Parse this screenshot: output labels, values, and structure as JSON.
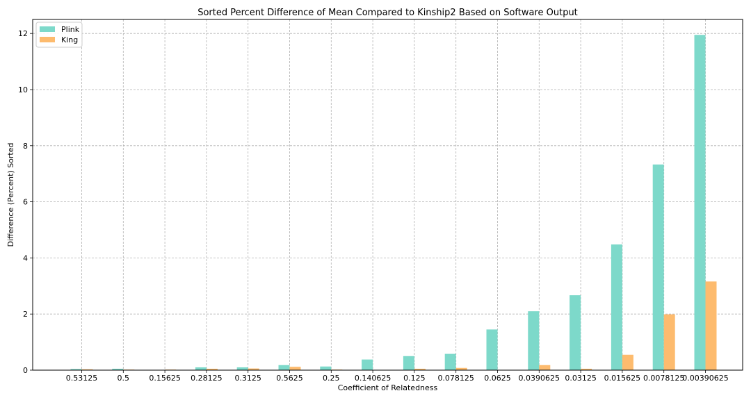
{
  "chart_data": {
    "type": "bar",
    "title": "Sorted Percent Difference of Mean Compared to Kinship2 Based on Software Output",
    "xlabel": "Coefficient of Relatedness",
    "ylabel": "Difference (Percent) Sorted",
    "categories": [
      "0.53125",
      "0.5",
      "0.15625",
      "0.28125",
      "0.3125",
      "0.5625",
      "0.25",
      "0.140625",
      "0.125",
      "0.078125",
      "0.0625",
      "0.0390625",
      "0.03125",
      "0.015625",
      "0.0078125",
      "0.00390625"
    ],
    "series": [
      {
        "name": "Plink",
        "color": "#7dd9ca",
        "values": [
          0.04,
          0.05,
          0.0,
          0.1,
          0.1,
          0.18,
          0.13,
          0.38,
          0.5,
          0.58,
          1.45,
          2.1,
          2.67,
          4.48,
          7.33,
          11.95
        ]
      },
      {
        "name": "King",
        "color": "#fdbb6e",
        "values": [
          0.03,
          0.02,
          0.02,
          0.05,
          0.06,
          0.12,
          0.02,
          0.0,
          0.05,
          0.08,
          0.0,
          0.18,
          0.05,
          0.55,
          1.99,
          3.16
        ]
      }
    ],
    "ylim": [
      0,
      12.5
    ],
    "yticks": [
      0,
      2,
      4,
      6,
      8,
      10,
      12
    ],
    "grid": true,
    "legend_position": "top-left"
  }
}
